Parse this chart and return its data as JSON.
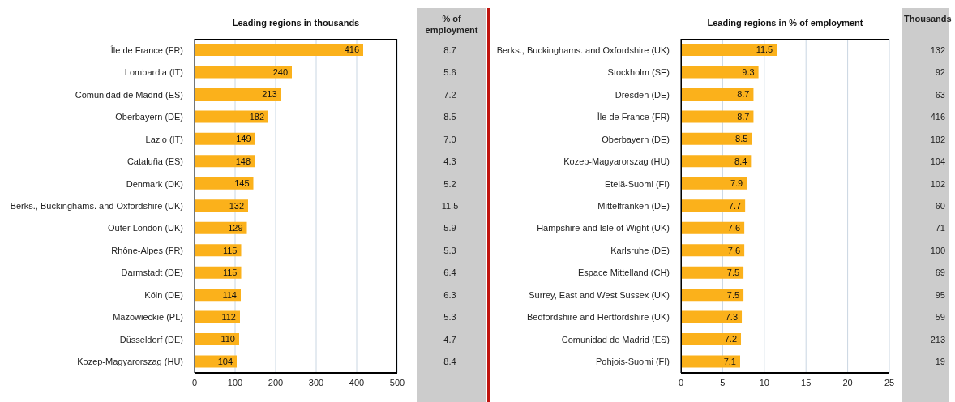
{
  "chart_data": [
    {
      "type": "bar",
      "orientation": "horizontal",
      "title": "Leading regions in thousands",
      "categories": [
        "Île de France (FR)",
        "Lombardia (IT)",
        "Comunidad de Madrid (ES)",
        "Oberbayern (DE)",
        "Lazio (IT)",
        "Cataluña (ES)",
        "Denmark (DK)",
        "Berks., Buckinghams. and Oxfordshire (UK)",
        "Outer London (UK)",
        "Rhône-Alpes (FR)",
        "Darmstadt (DE)",
        "Köln (DE)",
        "Mazowieckie (PL)",
        "Düsseldorf (DE)",
        "Kozep-Magyarorszag (HU)"
      ],
      "values": [
        416,
        240,
        213,
        182,
        149,
        148,
        145,
        132,
        129,
        115,
        115,
        114,
        112,
        110,
        104
      ],
      "color": "#fbb11b",
      "xlim": [
        0,
        500
      ],
      "xticks": [
        0,
        100,
        200,
        300,
        400,
        500
      ],
      "grid": "x",
      "data_labels": true
    },
    {
      "type": "other",
      "title": "% of employment",
      "values": [
        8.7,
        5.6,
        7.2,
        8.5,
        7.0,
        4.3,
        5.2,
        11.5,
        5.9,
        5.3,
        6.4,
        6.3,
        5.3,
        4.7,
        8.4
      ],
      "value_labels": [
        "8.7",
        "5.6",
        "7.2",
        "8.5",
        "7.0",
        "4.3",
        "5.2",
        "11.5",
        "5.9",
        "5.3",
        "6.4",
        "6.3",
        "5.3",
        "4.7",
        "8.4"
      ]
    },
    {
      "type": "bar",
      "orientation": "horizontal",
      "title": "Leading regions in % of employment",
      "categories": [
        "Berks., Buckinghams. and Oxfordshire (UK)",
        "Stockholm (SE)",
        "Dresden (DE)",
        "Île de France (FR)",
        "Oberbayern (DE)",
        "Kozep-Magyarorszag (HU)",
        "Etelä-Suomi (FI)",
        "Mittelfranken (DE)",
        "Hampshire and Isle of Wight (UK)",
        "Karlsruhe (DE)",
        "Espace Mittelland (CH)",
        "Surrey, East and West Sussex (UK)",
        "Bedfordshire and Hertfordshire (UK)",
        "Comunidad de Madrid (ES)",
        "Pohjois-Suomi (FI)"
      ],
      "values": [
        11.5,
        9.3,
        8.7,
        8.7,
        8.5,
        8.4,
        7.9,
        7.7,
        7.6,
        7.6,
        7.5,
        7.5,
        7.3,
        7.2,
        7.1
      ],
      "color": "#fbb11b",
      "xlim": [
        0,
        25
      ],
      "xticks": [
        0,
        5,
        10,
        15,
        20,
        25
      ],
      "grid": "x",
      "data_labels": true
    },
    {
      "type": "other",
      "title": "Thousands",
      "values": [
        132,
        92,
        63,
        416,
        182,
        104,
        102,
        60,
        71,
        100,
        69,
        95,
        59,
        213,
        19
      ],
      "data_labels": true
    }
  ]
}
